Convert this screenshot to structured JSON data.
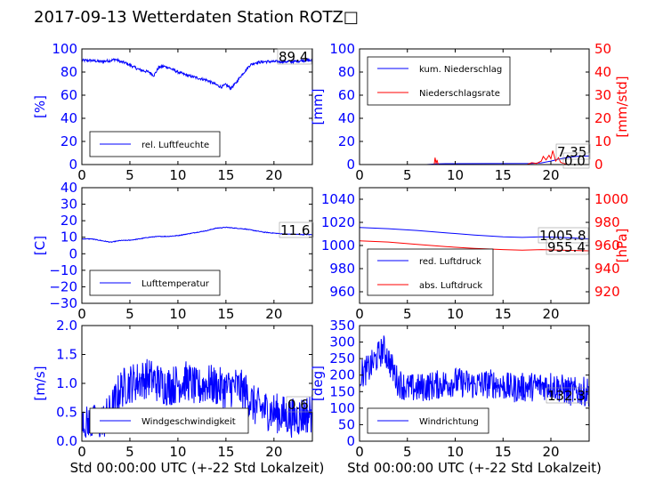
{
  "figure": {
    "title": "2017-09-13 Wetterdaten Station ROTZ□"
  },
  "colors": {
    "left_axis": "#0000ff",
    "right_axis": "#ff0000",
    "series_blue": "#0000ff",
    "series_red": "#ff0000",
    "text": "#000000"
  },
  "chart_data": [
    {
      "id": "humidity",
      "type": "line",
      "xlim": [
        0,
        24
      ],
      "ylim": [
        0,
        100
      ],
      "xticks": [
        "0",
        "5",
        "10",
        "15",
        "20"
      ],
      "yticks": [
        "0",
        "20",
        "40",
        "60",
        "80",
        "100"
      ],
      "ylabel": "[%]",
      "xlabel": "",
      "legend": {
        "placement": "lower-left",
        "entries": [
          "rel. Luftfeuchte"
        ]
      },
      "readout": "89.4",
      "series": [
        {
          "name": "rel. Luftfeuchte",
          "color": "#0000ff",
          "noise": 1.2,
          "x": [
            0,
            1,
            2,
            3,
            3.5,
            4,
            4.5,
            5,
            5.5,
            6,
            7,
            7.5,
            8,
            8.5,
            9,
            10,
            11,
            12,
            13,
            13.5,
            14,
            14.5,
            15,
            15.5,
            16,
            16.5,
            17,
            17.5,
            18,
            19,
            20,
            21,
            22,
            23,
            24
          ],
          "y": [
            90,
            90,
            89,
            90,
            91,
            89,
            88,
            86,
            84,
            82,
            80,
            77,
            84,
            85,
            84,
            80,
            77,
            75,
            73,
            71,
            69,
            67,
            69,
            66,
            70,
            76,
            81,
            86,
            88,
            89,
            89,
            89,
            89,
            90,
            90
          ]
        }
      ]
    },
    {
      "id": "precip",
      "type": "line",
      "xlim": [
        0,
        24
      ],
      "ylim": [
        0,
        100
      ],
      "y2lim": [
        0,
        50
      ],
      "xticks": [
        "0",
        "5",
        "10",
        "15",
        "20"
      ],
      "yticks": [
        "0",
        "20",
        "40",
        "60",
        "80",
        "100"
      ],
      "y2ticks": [
        "0",
        "10",
        "20",
        "30",
        "40",
        "50"
      ],
      "ylabel": "[mm]",
      "y2label": "[mm/std]",
      "xlabel": "",
      "legend": {
        "placement": "upper-left",
        "entries": [
          "kum. Niederschlag",
          "Niederschlagsrate"
        ]
      },
      "readouts": [
        "7.35",
        "0.0"
      ],
      "series": [
        {
          "name": "kum. Niederschlag",
          "color": "#0000ff",
          "axis": "left",
          "noise": 0,
          "x": [
            0,
            7,
            8,
            9,
            18,
            19,
            20,
            21,
            22,
            23,
            24
          ],
          "y": [
            0,
            0,
            0.5,
            0.8,
            1,
            1.5,
            3,
            5,
            6.5,
            7.3,
            7.35
          ]
        },
        {
          "name": "Niederschlagsrate",
          "color": "#ff0000",
          "axis": "right",
          "noise": 0,
          "x": [
            0,
            7.8,
            7.9,
            8.0,
            8.1,
            8.2,
            8.3,
            9.5,
            17.5,
            18,
            18.5,
            19,
            19.2,
            19.5,
            19.8,
            20,
            20.2,
            20.5,
            20.8,
            21,
            21.3,
            21.8,
            24
          ],
          "y": [
            0,
            0,
            3,
            0.5,
            2,
            0.3,
            0,
            0,
            0,
            0.8,
            0.5,
            1.5,
            3.5,
            2,
            4,
            2.5,
            6,
            1.5,
            3,
            1,
            0.5,
            0,
            0
          ]
        }
      ]
    },
    {
      "id": "temperature",
      "type": "line",
      "xlim": [
        0,
        24
      ],
      "ylim": [
        -30,
        40
      ],
      "xticks": [
        "0",
        "5",
        "10",
        "15",
        "20"
      ],
      "yticks": [
        "−30",
        "−20",
        "−10",
        "0",
        "10",
        "20",
        "30",
        "40"
      ],
      "ylabel": "[C]",
      "xlabel": "",
      "legend": {
        "placement": "lower-left",
        "entries": [
          "Lufttemperatur"
        ]
      },
      "readout": "11.6",
      "series": [
        {
          "name": "Lufttemperatur",
          "color": "#0000ff",
          "noise": 0.2,
          "x": [
            0,
            1,
            2,
            3,
            4,
            5,
            6,
            7,
            8,
            9,
            10,
            11,
            12,
            13,
            14,
            15,
            16,
            17,
            18,
            19,
            20,
            21,
            22,
            23,
            24
          ],
          "y": [
            9,
            9,
            8,
            7,
            8,
            8.2,
            9,
            10,
            10.5,
            10.5,
            11,
            12,
            13,
            14,
            15.5,
            16,
            15.5,
            15,
            14,
            13,
            12.5,
            12,
            11.8,
            11.6,
            11.6
          ]
        }
      ]
    },
    {
      "id": "pressure",
      "type": "line",
      "xlim": [
        0,
        24
      ],
      "ylim": [
        950,
        1050
      ],
      "y2lim": [
        910,
        1010
      ],
      "xticks": [
        "0",
        "5",
        "10",
        "15",
        "20"
      ],
      "yticks": [
        "960",
        "980",
        "1000",
        "1020",
        "1040"
      ],
      "y2ticks": [
        "920",
        "940",
        "960",
        "980",
        "1000"
      ],
      "ylabel": "",
      "y2label": "[hPa]",
      "xlabel": "",
      "legend": {
        "placement": "lower-left",
        "entries": [
          "red. Luftdruck",
          "abs. Luftdruck"
        ]
      },
      "readouts": [
        "1005.8",
        "955.4"
      ],
      "series": [
        {
          "name": "red. Luftdruck",
          "color": "#0000ff",
          "axis": "left",
          "noise": 0,
          "x": [
            0,
            3,
            6,
            9,
            12,
            15,
            17,
            19,
            21,
            24
          ],
          "y": [
            1015.5,
            1014.5,
            1013,
            1011,
            1009,
            1007.5,
            1007,
            1007.5,
            1007,
            1005.8
          ]
        },
        {
          "name": "abs. Luftdruck",
          "color": "#ff0000",
          "axis": "right",
          "noise": 0,
          "x": [
            0,
            3,
            6,
            9,
            12,
            15,
            17,
            19,
            21,
            24
          ],
          "y": [
            964,
            963,
            961,
            959,
            957.5,
            956.5,
            956,
            956.5,
            956,
            955.4
          ]
        }
      ]
    },
    {
      "id": "windspeed",
      "type": "line",
      "xlim": [
        0,
        24
      ],
      "ylim": [
        0,
        2
      ],
      "xticks": [
        "0",
        "5",
        "10",
        "15",
        "20"
      ],
      "yticks": [
        "0.0",
        "0.5",
        "1.0",
        "1.5",
        "2.0"
      ],
      "ylabel": "[m/s]",
      "xlabel": "Std 00:00:00 UTC (+-22 Std Lokalzeit)",
      "legend": {
        "placement": "lower-left",
        "entries": [
          "Windgeschwindigkeit"
        ]
      },
      "readout": "0.6",
      "series": [
        {
          "name": "Windgeschwindigkeit",
          "color": "#0000ff",
          "noise": 0.35,
          "x": [
            0,
            1,
            2,
            3,
            3.5,
            4,
            5,
            6,
            7,
            8,
            9,
            10,
            11,
            12,
            13,
            14,
            15,
            16,
            17,
            18,
            19,
            20,
            21,
            22,
            23,
            24
          ],
          "y": [
            0.25,
            0.3,
            0.3,
            0.5,
            0.7,
            0.9,
            1.0,
            1.05,
            1.1,
            1.0,
            0.95,
            1.0,
            1.05,
            0.9,
            1.0,
            0.95,
            0.9,
            0.95,
            0.85,
            0.6,
            0.55,
            0.5,
            0.45,
            0.4,
            0.45,
            0.5
          ]
        }
      ]
    },
    {
      "id": "winddir",
      "type": "line",
      "xlim": [
        0,
        24
      ],
      "ylim": [
        0,
        350
      ],
      "xticks": [
        "0",
        "5",
        "10",
        "15",
        "20"
      ],
      "yticks": [
        "0",
        "50",
        "100",
        "150",
        "200",
        "250",
        "300",
        "350"
      ],
      "ylabel": "[deg]",
      "xlabel": "Std 00:00:00 UTC (+-22 Std Lokalzeit)",
      "legend": {
        "placement": "lower-left",
        "entries": [
          "Windrichtung"
        ]
      },
      "readout": "132.3",
      "series": [
        {
          "name": "Windrichtung",
          "color": "#0000ff",
          "noise": 45,
          "x": [
            0,
            1,
            2,
            2.5,
            3,
            4,
            5,
            6,
            8,
            10,
            12,
            14,
            16,
            18,
            20,
            22,
            24
          ],
          "y": [
            200,
            220,
            260,
            280,
            250,
            180,
            160,
            160,
            170,
            180,
            170,
            175,
            160,
            165,
            170,
            150,
            150
          ]
        }
      ]
    }
  ]
}
